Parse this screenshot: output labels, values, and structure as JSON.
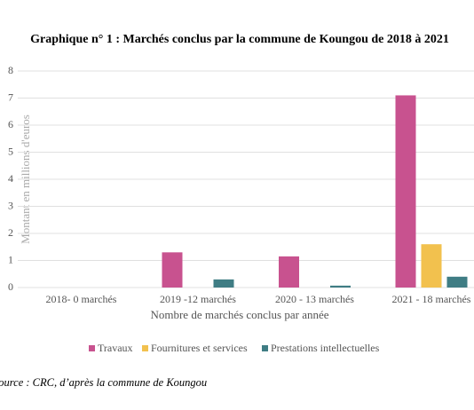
{
  "chart_data": {
    "type": "bar",
    "title": "Graphique n° 1 :  Marchés conclus par la commune de Koungou de 2018 à 2021",
    "x_label": "Nombre de marchés conclus par année",
    "y_label": "Montant en millions d'euros",
    "source": "Source : CRC, d’après la commune de Koungou",
    "categories": [
      "2018- 0 marchés",
      "2019 -12 marchés",
      "2020 - 13 marchés",
      "2021 - 18 marchés"
    ],
    "series": [
      {
        "name": "Travaux",
        "color": "#c8528f",
        "values": [
          0,
          1.3,
          1.15,
          7.1
        ]
      },
      {
        "name": "Fournitures et services",
        "color": "#f2c14e",
        "values": [
          0,
          0,
          0,
          1.6
        ]
      },
      {
        "name": "Prestations intellectuelles",
        "color": "#3f7d84",
        "values": [
          0,
          0.3,
          0.07,
          0.4
        ]
      }
    ],
    "ylim": [
      0,
      8
    ],
    "yticks": [
      0,
      1,
      2,
      3,
      4,
      5,
      6,
      7,
      8
    ],
    "grid": true,
    "legend": "bottom"
  }
}
